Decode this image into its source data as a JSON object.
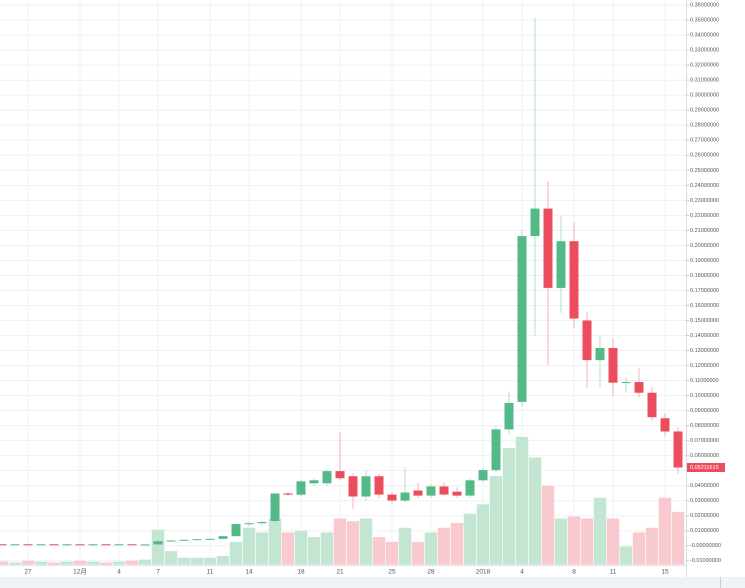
{
  "chart_data": {
    "type": "candlestick",
    "categories": [
      null,
      null,
      "27",
      null,
      null,
      null,
      "12月",
      null,
      null,
      "4",
      null,
      null,
      "7",
      null,
      null,
      null,
      "11",
      null,
      null,
      "14",
      null,
      null,
      null,
      "18",
      null,
      null,
      "21",
      null,
      null,
      null,
      "25",
      null,
      null,
      "28",
      null,
      null,
      null,
      "2018",
      null,
      null,
      "4",
      null,
      null,
      null,
      "8",
      null,
      null,
      "11",
      null,
      null,
      null,
      "15",
      null
    ],
    "open": [
      0.001,
      0.0009,
      0.001,
      0.0009,
      0.001,
      0.0009,
      0.001,
      0.0009,
      0.001,
      0.0009,
      0.001,
      0.0009,
      0.0009,
      0.003,
      0.0035,
      0.004,
      0.0044,
      0.0046,
      0.0064,
      0.0145,
      0.015,
      0.0165,
      0.0348,
      0.034,
      0.0416,
      0.0416,
      0.0497,
      0.0463,
      0.0328,
      0.0463,
      0.0341,
      0.0301,
      0.0368,
      0.0334,
      0.0395,
      0.036,
      0.0334,
      0.0436,
      0.0504,
      0.0775,
      0.0958,
      0.2062,
      0.2245,
      0.1717,
      0.2028,
      0.15,
      0.1236,
      0.1317,
      0.1086,
      0.109,
      0.1019,
      0.0849,
      0.0761
    ],
    "high": [
      0.0012,
      0.0011,
      0.0012,
      0.0011,
      0.0012,
      0.0011,
      0.0012,
      0.0011,
      0.0012,
      0.0011,
      0.0012,
      0.0011,
      0.0035,
      0.004,
      0.0044,
      0.0046,
      0.005,
      0.0066,
      0.015,
      0.016,
      0.0165,
      0.035,
      0.036,
      0.044,
      0.045,
      0.051,
      0.0754,
      0.048,
      0.05,
      0.048,
      0.036,
      0.052,
      0.042,
      0.041,
      0.042,
      0.039,
      0.045,
      0.052,
      0.08,
      0.1026,
      0.21,
      0.3519,
      0.2428,
      0.22,
      0.215,
      0.156,
      0.14,
      0.138,
      0.112,
      0.118,
      0.106,
      0.088,
      0.079
    ],
    "low": [
      0.0008,
      0.0007,
      0.0008,
      0.0007,
      0.0008,
      0.0007,
      0.0008,
      0.0007,
      0.0008,
      0.0007,
      0.0008,
      0.0007,
      0.0009,
      0.0028,
      0.0033,
      0.0038,
      0.004,
      0.0044,
      0.006,
      0.013,
      0.014,
      0.016,
      0.033,
      0.033,
      0.04,
      0.04,
      0.044,
      0.0246,
      0.03,
      0.032,
      0.028,
      0.029,
      0.032,
      0.032,
      0.033,
      0.032,
      0.032,
      0.042,
      0.049,
      0.074,
      0.093,
      0.14,
      0.12,
      0.155,
      0.145,
      0.105,
      0.105,
      0.1,
      0.102,
      0.099,
      0.083,
      0.073,
      0.048
    ],
    "close": [
      0.0009,
      0.001,
      0.0009,
      0.001,
      0.0009,
      0.001,
      0.0009,
      0.001,
      0.0009,
      0.001,
      0.0009,
      0.0009,
      0.003,
      0.0035,
      0.004,
      0.0044,
      0.0046,
      0.0064,
      0.0145,
      0.015,
      0.0158,
      0.0348,
      0.034,
      0.0429,
      0.0436,
      0.0497,
      0.045,
      0.0328,
      0.0463,
      0.0341,
      0.0301,
      0.0355,
      0.0334,
      0.0395,
      0.0341,
      0.0334,
      0.0436,
      0.0504,
      0.0775,
      0.0951,
      0.2062,
      0.2245,
      0.1717,
      0.2028,
      0.1513,
      0.1236,
      0.1317,
      0.1086,
      0.109,
      0.1019,
      0.0856,
      0.0761,
      0.05211615
    ],
    "volume": [
      4,
      3,
      5,
      4,
      3,
      4,
      5,
      4,
      3,
      4,
      5,
      6,
      38,
      15,
      8,
      8,
      8,
      10,
      25,
      40,
      35,
      50,
      35,
      37,
      30,
      35,
      50,
      47,
      50,
      30,
      25,
      40,
      25,
      35,
      40,
      45,
      55,
      65,
      95,
      125,
      137,
      115,
      85,
      50,
      52,
      50,
      72,
      50,
      20,
      35,
      40,
      72,
      57
    ],
    "vlim": [
      0,
      160
    ],
    "up_color": "#53b987",
    "down_color": "#eb4d5c",
    "up_volume_color": "#c3e6d2",
    "down_volume_color": "#f8c9ce",
    "price_label": {
      "value": 0.05211615,
      "label": "0.05211615"
    },
    "ylim": [
      -0.0128,
      0.3634
    ],
    "yticks": [
      {
        "value": 0.36,
        "label": "0.36000000"
      },
      {
        "value": 0.35,
        "label": "0.35000000"
      },
      {
        "value": 0.34,
        "label": "0.34000000"
      },
      {
        "value": 0.33,
        "label": "0.33000000"
      },
      {
        "value": 0.32,
        "label": "0.32000000"
      },
      {
        "value": 0.31,
        "label": "0.31000000"
      },
      {
        "value": 0.3,
        "label": "0.30000000"
      },
      {
        "value": 0.29,
        "label": "0.29000000"
      },
      {
        "value": 0.28,
        "label": "0.28000000"
      },
      {
        "value": 0.27,
        "label": "0.27000000"
      },
      {
        "value": 0.26,
        "label": "0.26000000"
      },
      {
        "value": 0.25,
        "label": "0.25000000"
      },
      {
        "value": 0.24,
        "label": "0.24000000"
      },
      {
        "value": 0.23,
        "label": "0.23000000"
      },
      {
        "value": 0.22,
        "label": "0.22000000"
      },
      {
        "value": 0.21,
        "label": "0.21000000"
      },
      {
        "value": 0.2,
        "label": "0.20000000"
      },
      {
        "value": 0.19,
        "label": "0.19000000"
      },
      {
        "value": 0.18,
        "label": "0.18000000"
      },
      {
        "value": 0.17,
        "label": "0.17000000"
      },
      {
        "value": 0.16,
        "label": "0.16000000"
      },
      {
        "value": 0.15,
        "label": "0.15000000"
      },
      {
        "value": 0.14,
        "label": "0.14000000"
      },
      {
        "value": 0.13,
        "label": "0.13000000"
      },
      {
        "value": 0.12,
        "label": "0.12000000"
      },
      {
        "value": 0.11,
        "label": "0.11000000"
      },
      {
        "value": 0.1,
        "label": "0.10000000"
      },
      {
        "value": 0.09,
        "label": "0.09000000"
      },
      {
        "value": 0.08,
        "label": "0.08000000"
      },
      {
        "value": 0.07,
        "label": "0.07000000"
      },
      {
        "value": 0.06,
        "label": "0.06000000"
      },
      {
        "value": 0.05,
        "label": "0.05000000"
      },
      {
        "value": 0.04,
        "label": "0.04000000"
      },
      {
        "value": 0.03,
        "label": "0.03000000"
      },
      {
        "value": 0.02,
        "label": "0.02000000"
      },
      {
        "value": 0.01,
        "label": "0.01000000"
      },
      {
        "value": 0,
        "label": "-0.00000000"
      },
      {
        "value": -0.01,
        "label": "-0.01000000"
      }
    ],
    "grid": true
  }
}
